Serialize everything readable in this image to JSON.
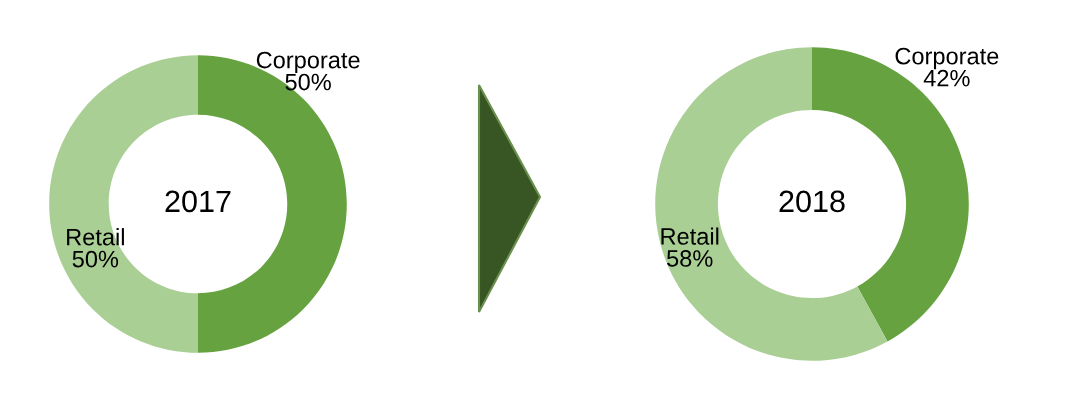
{
  "chart_data": [
    {
      "type": "donut",
      "title": "2017",
      "categories": [
        "Corporate",
        "Retail"
      ],
      "values": [
        50,
        50
      ],
      "value_labels": [
        "50%",
        "50%"
      ],
      "colors": [
        "#66a340",
        "#a9cf94"
      ]
    },
    {
      "type": "donut",
      "title": "2018",
      "categories": [
        "Corporate",
        "Retail"
      ],
      "values": [
        42,
        58
      ],
      "value_labels": [
        "42%",
        "58%"
      ],
      "colors": [
        "#66a340",
        "#a9cf94"
      ]
    }
  ]
}
